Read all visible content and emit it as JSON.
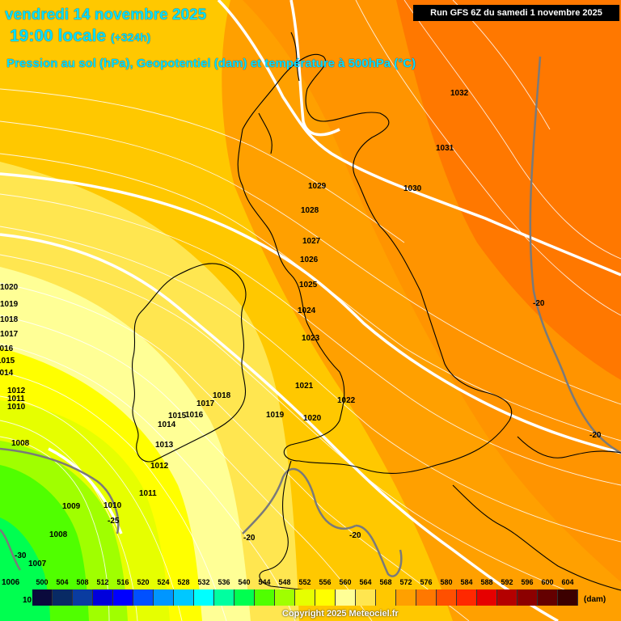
{
  "header": {
    "date_line": "vendredi 14 novembre 2025",
    "time_line": "19:00 locale",
    "hours_offset": "(+324h)",
    "parameter_line": "Pression au sol (hPa), Geopotentiel (dam) et température à 500hPa (°C)"
  },
  "run_info": "Run GFS 6Z du samedi 1 novembre 2025",
  "isobar_labels": [
    "1032",
    "1031",
    "1030",
    "1029",
    "1028",
    "1027",
    "1026",
    "1025",
    "1024",
    "1023",
    "1022",
    "1021",
    "1020",
    "1019",
    "1018",
    "1017",
    "1016",
    "1015",
    "1014",
    "1013",
    "1012",
    "1011",
    "1010",
    "1009",
    "1008",
    "1007",
    "1006",
    "1020",
    "1019",
    "1018",
    "1017",
    "1016",
    "1015",
    "1014",
    "1012",
    "1011",
    "1010",
    "1008"
  ],
  "temperature_labels": [
    "-20",
    "-20",
    "-20",
    "-20",
    "-25",
    "-30"
  ],
  "legend": {
    "levels": [
      "500",
      "504",
      "508",
      "512",
      "516",
      "520",
      "524",
      "528",
      "532",
      "536",
      "540",
      "544",
      "548",
      "552",
      "556",
      "560",
      "564",
      "568",
      "572",
      "576",
      "580",
      "584",
      "588",
      "592",
      "596",
      "600",
      "604"
    ],
    "colors": [
      "#0a0a3c",
      "#082a64",
      "#0a3ca0",
      "#0000dc",
      "#0000ff",
      "#0050ff",
      "#0096ff",
      "#00c8ff",
      "#00ffff",
      "#00ffa0",
      "#00ff50",
      "#50ff00",
      "#a0ff00",
      "#e6ff00",
      "#ffff00",
      "#ffff96",
      "#ffe650",
      "#ffc800",
      "#ffa000",
      "#ff7800",
      "#ff5000",
      "#ff2800",
      "#e60000",
      "#b40000",
      "#8c0000",
      "#640000",
      "#3c0000"
    ],
    "unit": "(dam)",
    "bottom_left_label": "10"
  },
  "copyright": "Copyright 2025 Meteociel.fr"
}
